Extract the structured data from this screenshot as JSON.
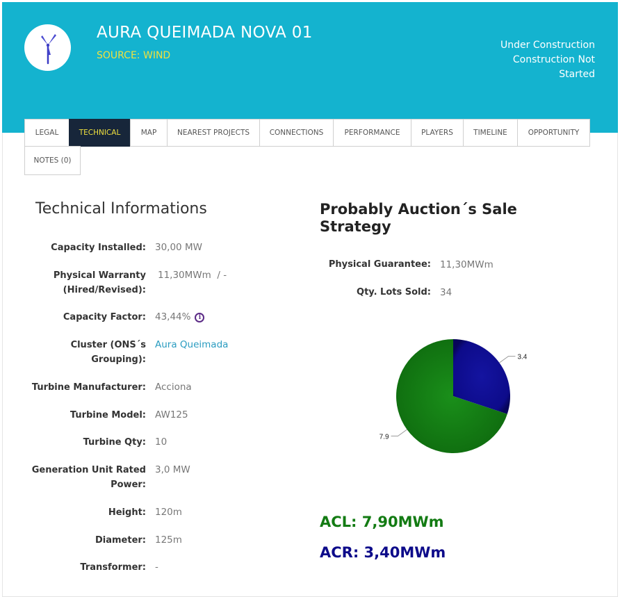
{
  "header": {
    "title": "AURA QUEIMADA NOVA 01",
    "source": "SOURCE: WIND",
    "status_lines": [
      "Under Construction",
      "Construction Not",
      "Started"
    ],
    "logo_icon": "wind-turbine-icon",
    "bg_color": "#14b3cf",
    "accent_color": "#f0e13e"
  },
  "tabs": [
    {
      "label": "LEGAL",
      "active": false
    },
    {
      "label": "TECHNICAL",
      "active": true
    },
    {
      "label": "MAP",
      "active": false
    },
    {
      "label": "NEAREST PROJECTS",
      "active": false
    },
    {
      "label": "CONNECTIONS",
      "active": false
    },
    {
      "label": "PERFORMANCE",
      "active": false
    },
    {
      "label": "PLAYERS",
      "active": false
    },
    {
      "label": "TIMELINE",
      "active": false
    },
    {
      "label": "OPPORTUNITY",
      "active": false
    },
    {
      "label": "NOTES (0)",
      "active": false
    }
  ],
  "technical": {
    "title": "Technical Informations",
    "rows": [
      {
        "label_lines": [
          "Capacity Installed:"
        ],
        "value": "30,00 MW"
      },
      {
        "label_lines": [
          "Physical Warranty",
          "(Hired/Revised):"
        ],
        "value": "11,30MWm  / -"
      },
      {
        "label_lines": [
          "Capacity Factor:"
        ],
        "value": "43,44%",
        "info_icon": "info-icon"
      },
      {
        "label_lines": [
          "Cluster (ONS´s",
          "Grouping):"
        ],
        "value": "Aura Queimada",
        "link": true
      },
      {
        "label_lines": [
          "Turbine Manufacturer:"
        ],
        "value": "Acciona"
      },
      {
        "label_lines": [
          "Turbine Model:"
        ],
        "value": "AW125"
      },
      {
        "label_lines": [
          "Turbine Qty:"
        ],
        "value": "10"
      },
      {
        "label_lines": [
          "Generation Unit Rated",
          "Power:"
        ],
        "value": "3,0 MW"
      },
      {
        "label_lines": [
          "Height:"
        ],
        "value": "120m"
      },
      {
        "label_lines": [
          "Diameter:"
        ],
        "value": "125m"
      },
      {
        "label_lines": [
          "Transformer:"
        ],
        "value": "-"
      }
    ]
  },
  "auction": {
    "title": "Probably Auction´s Sale Strategy",
    "physical_guarantee_label": "Physical Guarantee:",
    "physical_guarantee_value": "11,30MWm",
    "lots_label": "Qty. Lots Sold:",
    "lots_value": "34",
    "acl_text": "ACL: 7,90MWm",
    "acr_text": "ACR: 3,40MWm",
    "acl_color": "#137b13",
    "acr_color": "#0d0b8a"
  },
  "chart_data": {
    "type": "pie",
    "slices": [
      {
        "label": "3.4",
        "value": 3.4,
        "color": "#0d0b8a"
      },
      {
        "label": "7.9",
        "value": 7.9,
        "color": "#137b13"
      }
    ]
  }
}
